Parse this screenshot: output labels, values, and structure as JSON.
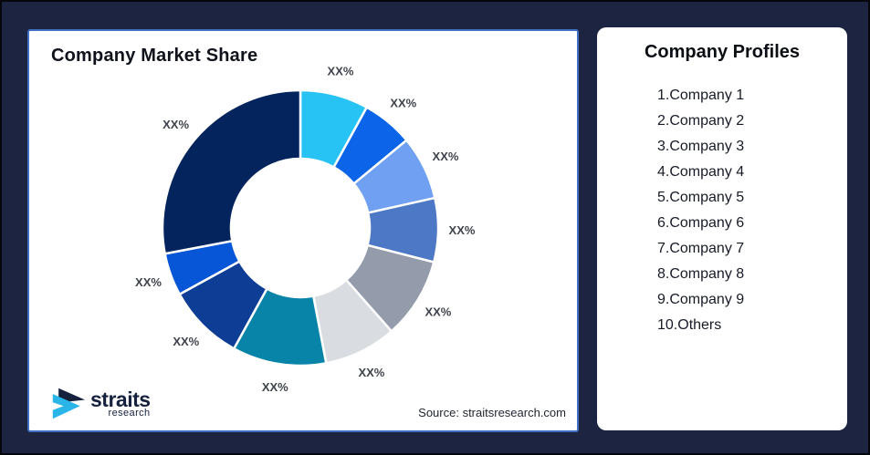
{
  "colors": {
    "background": "#1C2442",
    "panel_border_blue": "#4070C4",
    "label_gray": "#3F434B",
    "logo_navy": "#16213E",
    "logo_cyan": "#29B5E8"
  },
  "chart_data": {
    "type": "donut",
    "title": "Company Market Share",
    "source": "Source: straitsresearch.com",
    "start_angle_deg": 0,
    "inner_radius_ratio": 0.5,
    "gap_color": "#FFFFFF",
    "label_color": "#3F434B",
    "legend": "none",
    "note": "all slice data labels are placeholder text",
    "segments": [
      {
        "name": "Company 1",
        "label": "XX%",
        "value": 8,
        "color": "#27C3F5"
      },
      {
        "name": "Company 2",
        "label": "XX%",
        "value": 6,
        "color": "#0C64E8"
      },
      {
        "name": "Company 3",
        "label": "XX%",
        "value": 7.5,
        "color": "#6FA0F2"
      },
      {
        "name": "Company 4",
        "label": "XX%",
        "value": 7.5,
        "color": "#4C78C5"
      },
      {
        "name": "Company 5",
        "label": "XX%",
        "value": 9.5,
        "color": "#949CAB"
      },
      {
        "name": "Company 6",
        "label": "XX%",
        "value": 8.5,
        "color": "#D9DCE1"
      },
      {
        "name": "Company 7",
        "label": "XX%",
        "value": 11,
        "color": "#0984A9"
      },
      {
        "name": "Company 8",
        "label": "XX%",
        "value": 9,
        "color": "#0E3D96"
      },
      {
        "name": "Company 9",
        "label": "XX%",
        "value": 5,
        "color": "#0856D8"
      },
      {
        "name": "Others",
        "label": "XX%",
        "value": 28,
        "color": "#04245E"
      }
    ]
  },
  "profiles": {
    "title": "Company Profiles",
    "items": [
      "1.Company 1",
      "2.Company 2",
      "3.Company 3",
      "4.Company 4",
      "5.Company 5",
      "6.Company 6",
      "7.Company 7",
      "8.Company 8",
      "9.Company 9",
      "10.Others"
    ]
  },
  "logo": {
    "name": "straits",
    "sub": "research"
  }
}
